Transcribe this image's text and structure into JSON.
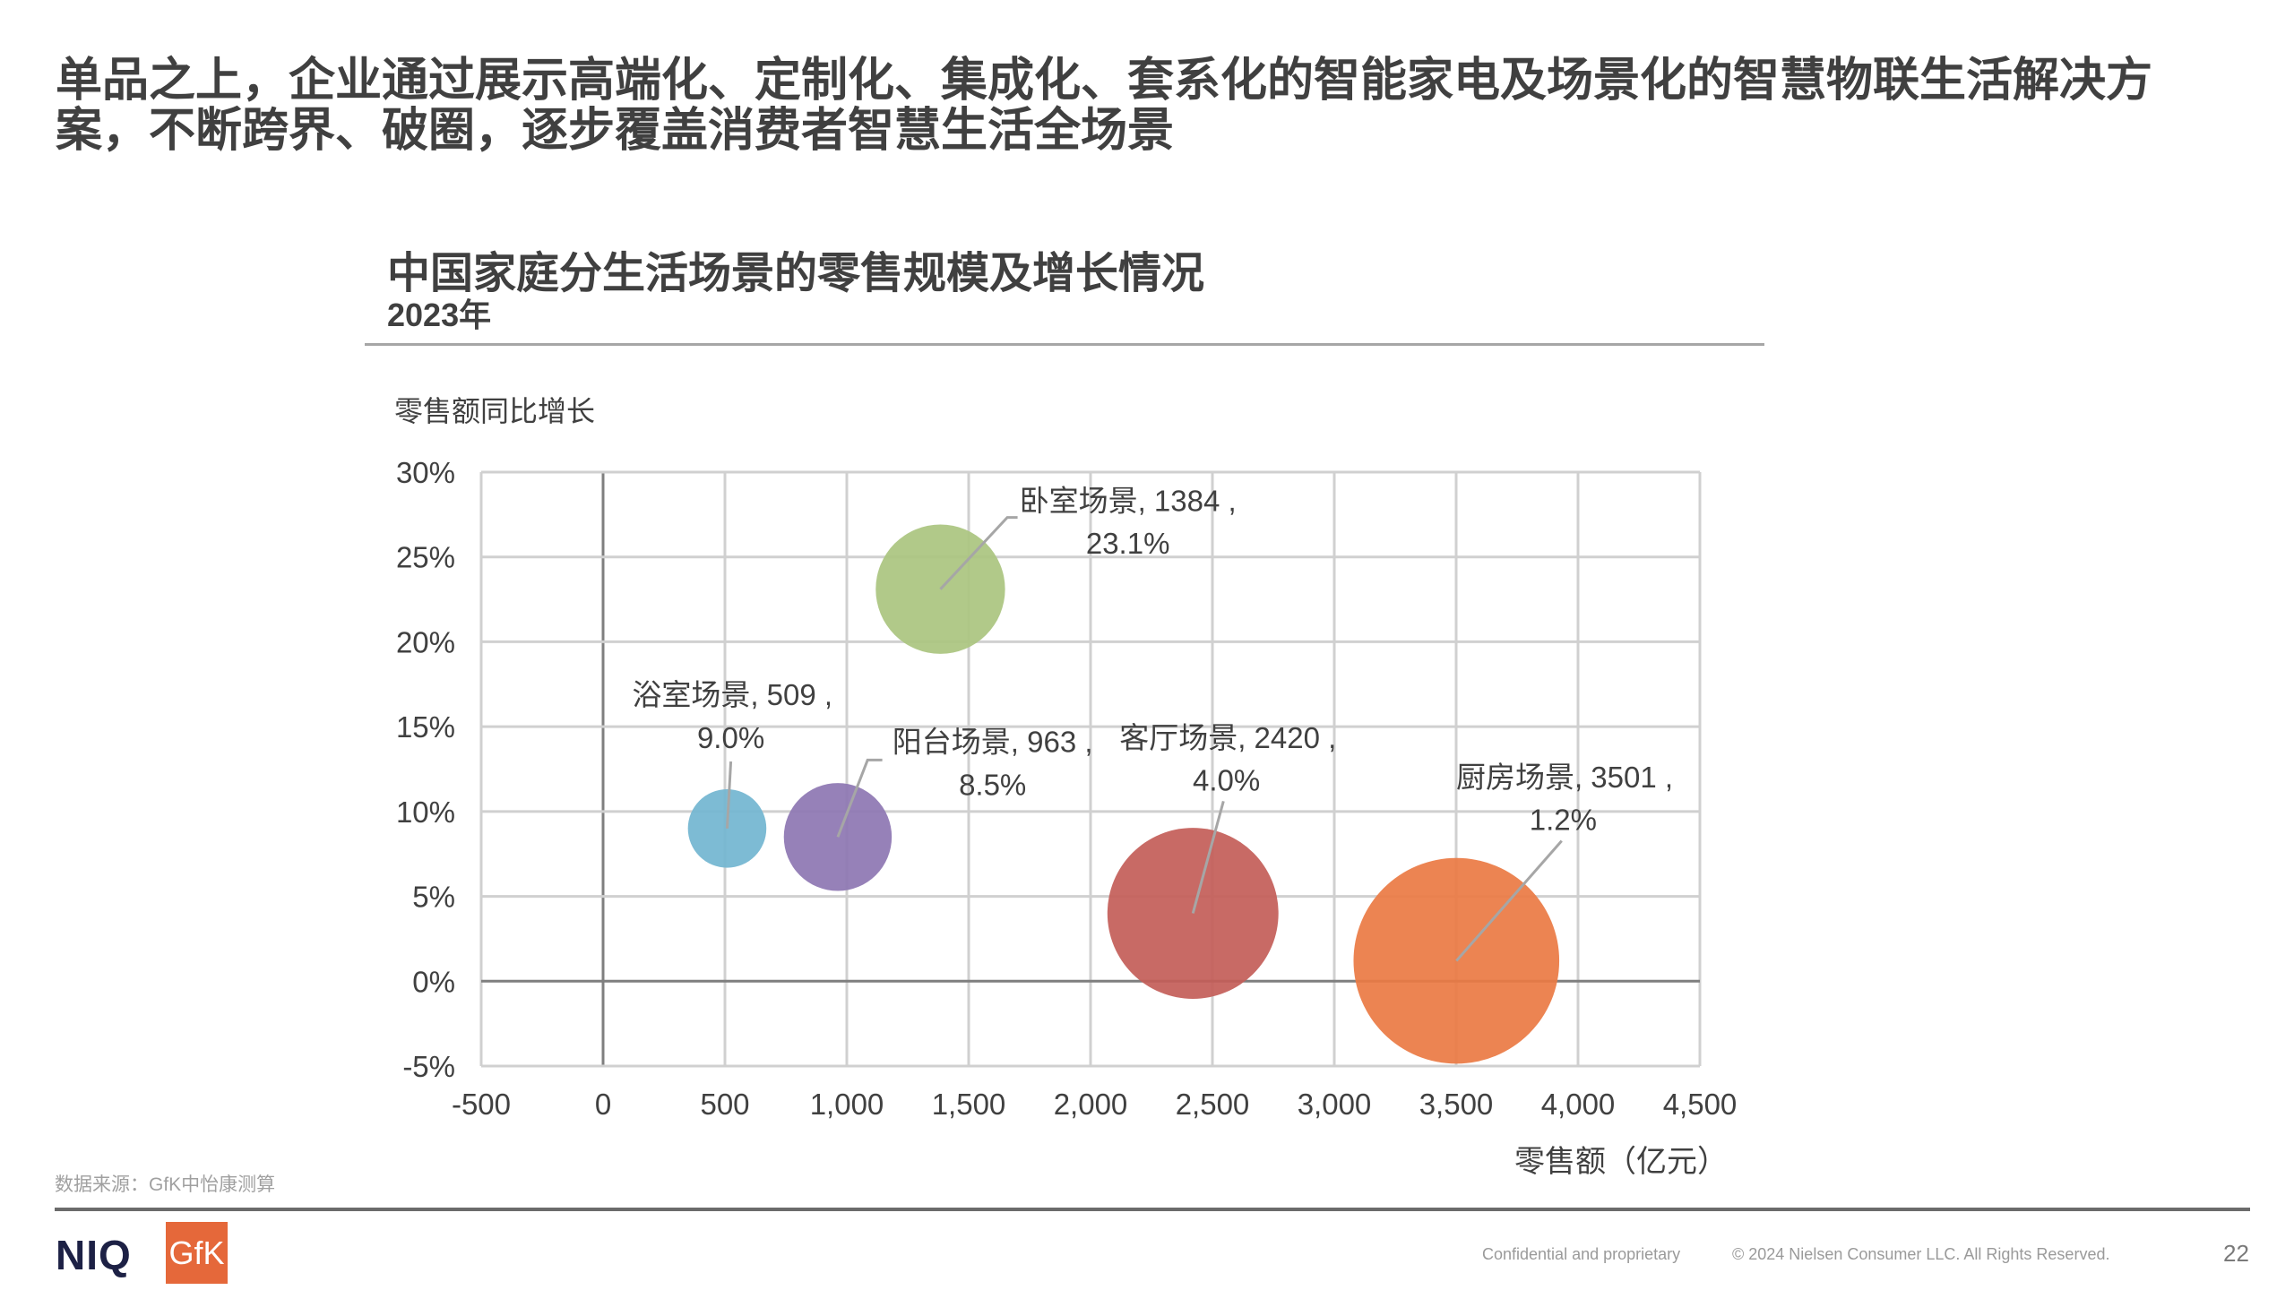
{
  "headline": "单品之上，企业通过展示高端化、定制化、集成化、套系化的智能家电及场景化的智慧物联生活解决方案，不断跨界、破圈，逐步覆盖消费者智慧生活全场景",
  "source": "数据来源：GfK中怡康测算",
  "footer": {
    "logo_niq": "NIQ",
    "logo_gfk": "GfK",
    "confidential": "Confidential and proprietary",
    "copyright": "© 2024 Nielsen Consumer LLC. All Rights Reserved.",
    "page_number": "22"
  },
  "chart_data": {
    "type": "bubble",
    "title": "中国家庭分生活场景的零售规模及增长情况",
    "subtitle": "2023年",
    "xlabel": "零售额（亿元）",
    "ylabel": "零售额同比增长",
    "xlim": [
      -500,
      4500
    ],
    "ylim": [
      -5,
      30
    ],
    "x_ticks": [
      "-500",
      "0",
      "500",
      "1,000",
      "1,500",
      "2,000",
      "2,500",
      "3,000",
      "3,500",
      "4,000",
      "4,500"
    ],
    "y_ticks": [
      "-5%",
      "0%",
      "5%",
      "10%",
      "15%",
      "20%",
      "25%",
      "30%"
    ],
    "grid": true,
    "series": [
      {
        "name": "浴室场景",
        "x": 509,
        "y": 9.0,
        "size": 509,
        "label1": "浴室场景, 509 ,",
        "label2": "9.0%",
        "color": "#72B5D0"
      },
      {
        "name": "阳台场景",
        "x": 963,
        "y": 8.5,
        "size": 963,
        "label1": "阳台场景, 963 ,",
        "label2": "8.5%",
        "color": "#8D76B2"
      },
      {
        "name": "卧室场景",
        "x": 1384,
        "y": 23.1,
        "size": 1384,
        "label1": "卧室场景, 1384 ,",
        "label2": "23.1%",
        "color": "#AAC47F"
      },
      {
        "name": "客厅场景",
        "x": 2420,
        "y": 4.0,
        "size": 2420,
        "label1": "客厅场景, 2420 ,",
        "label2": "4.0%",
        "color": "#C35D58"
      },
      {
        "name": "厨房场景",
        "x": 3501,
        "y": 1.2,
        "size": 3501,
        "label1": "厨房场景, 3501 ,",
        "label2": "1.2%",
        "color": "#EA7A43"
      }
    ]
  }
}
